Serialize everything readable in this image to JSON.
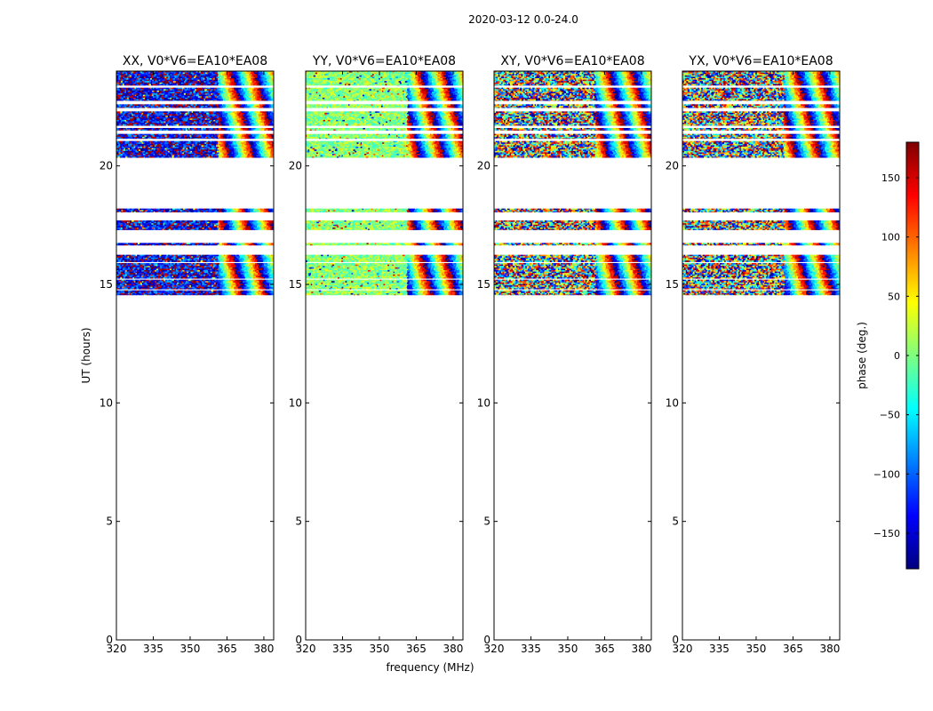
{
  "figure_title": "2020-03-12 0.0-24.0",
  "chart_data": {
    "type": "heatmap",
    "suptitle": "2020-03-12 0.0-24.0",
    "xlabel": "frequency (MHz)",
    "ylabel": "UT (hours)",
    "xlim": [
      320,
      384
    ],
    "ylim": [
      0,
      24
    ],
    "xticks": [
      320,
      335,
      350,
      365,
      380
    ],
    "yticks": [
      0,
      5,
      10,
      15,
      20
    ],
    "colorbar": {
      "label": "phase (deg.)",
      "range": [
        -180,
        180
      ],
      "ticks": [
        -150,
        -100,
        -50,
        0,
        50,
        100,
        150
      ],
      "colormap": "jet",
      "colors": [
        "#00007f",
        "#0000ff",
        "#007fff",
        "#00ffff",
        "#7fff7f",
        "#ffff00",
        "#ff7f00",
        "#ff0000",
        "#7f0000"
      ]
    },
    "panels": [
      {
        "title": "XX, V0*V6=EA10*EA08",
        "dominant_phase_deg": -140,
        "phase_spread_deg": 70
      },
      {
        "title": "YY, V0*V6=EA10*EA08",
        "dominant_phase_deg": 5,
        "phase_spread_deg": 35
      },
      {
        "title": "XY, V0*V6=EA10*EA08",
        "dominant_phase_deg": null,
        "phase_spread_deg": 180
      },
      {
        "title": "YX, V0*V6=EA10*EA08",
        "dominant_phase_deg": null,
        "phase_spread_deg": 180
      }
    ],
    "data_time_ranges_hours": [
      [
        14.55,
        14.75
      ],
      [
        14.8,
        15.2
      ],
      [
        15.25,
        15.9
      ],
      [
        15.95,
        16.25
      ],
      [
        16.65,
        16.75
      ],
      [
        17.3,
        17.7
      ],
      [
        18.05,
        18.2
      ],
      [
        20.35,
        21.05
      ],
      [
        21.15,
        21.35
      ],
      [
        21.5,
        21.6
      ],
      [
        21.7,
        22.3
      ],
      [
        22.45,
        22.6
      ],
      [
        22.75,
        23.3
      ],
      [
        23.4,
        24.0
      ]
    ],
    "wrapping_fringes_above_mhz": 361
  }
}
